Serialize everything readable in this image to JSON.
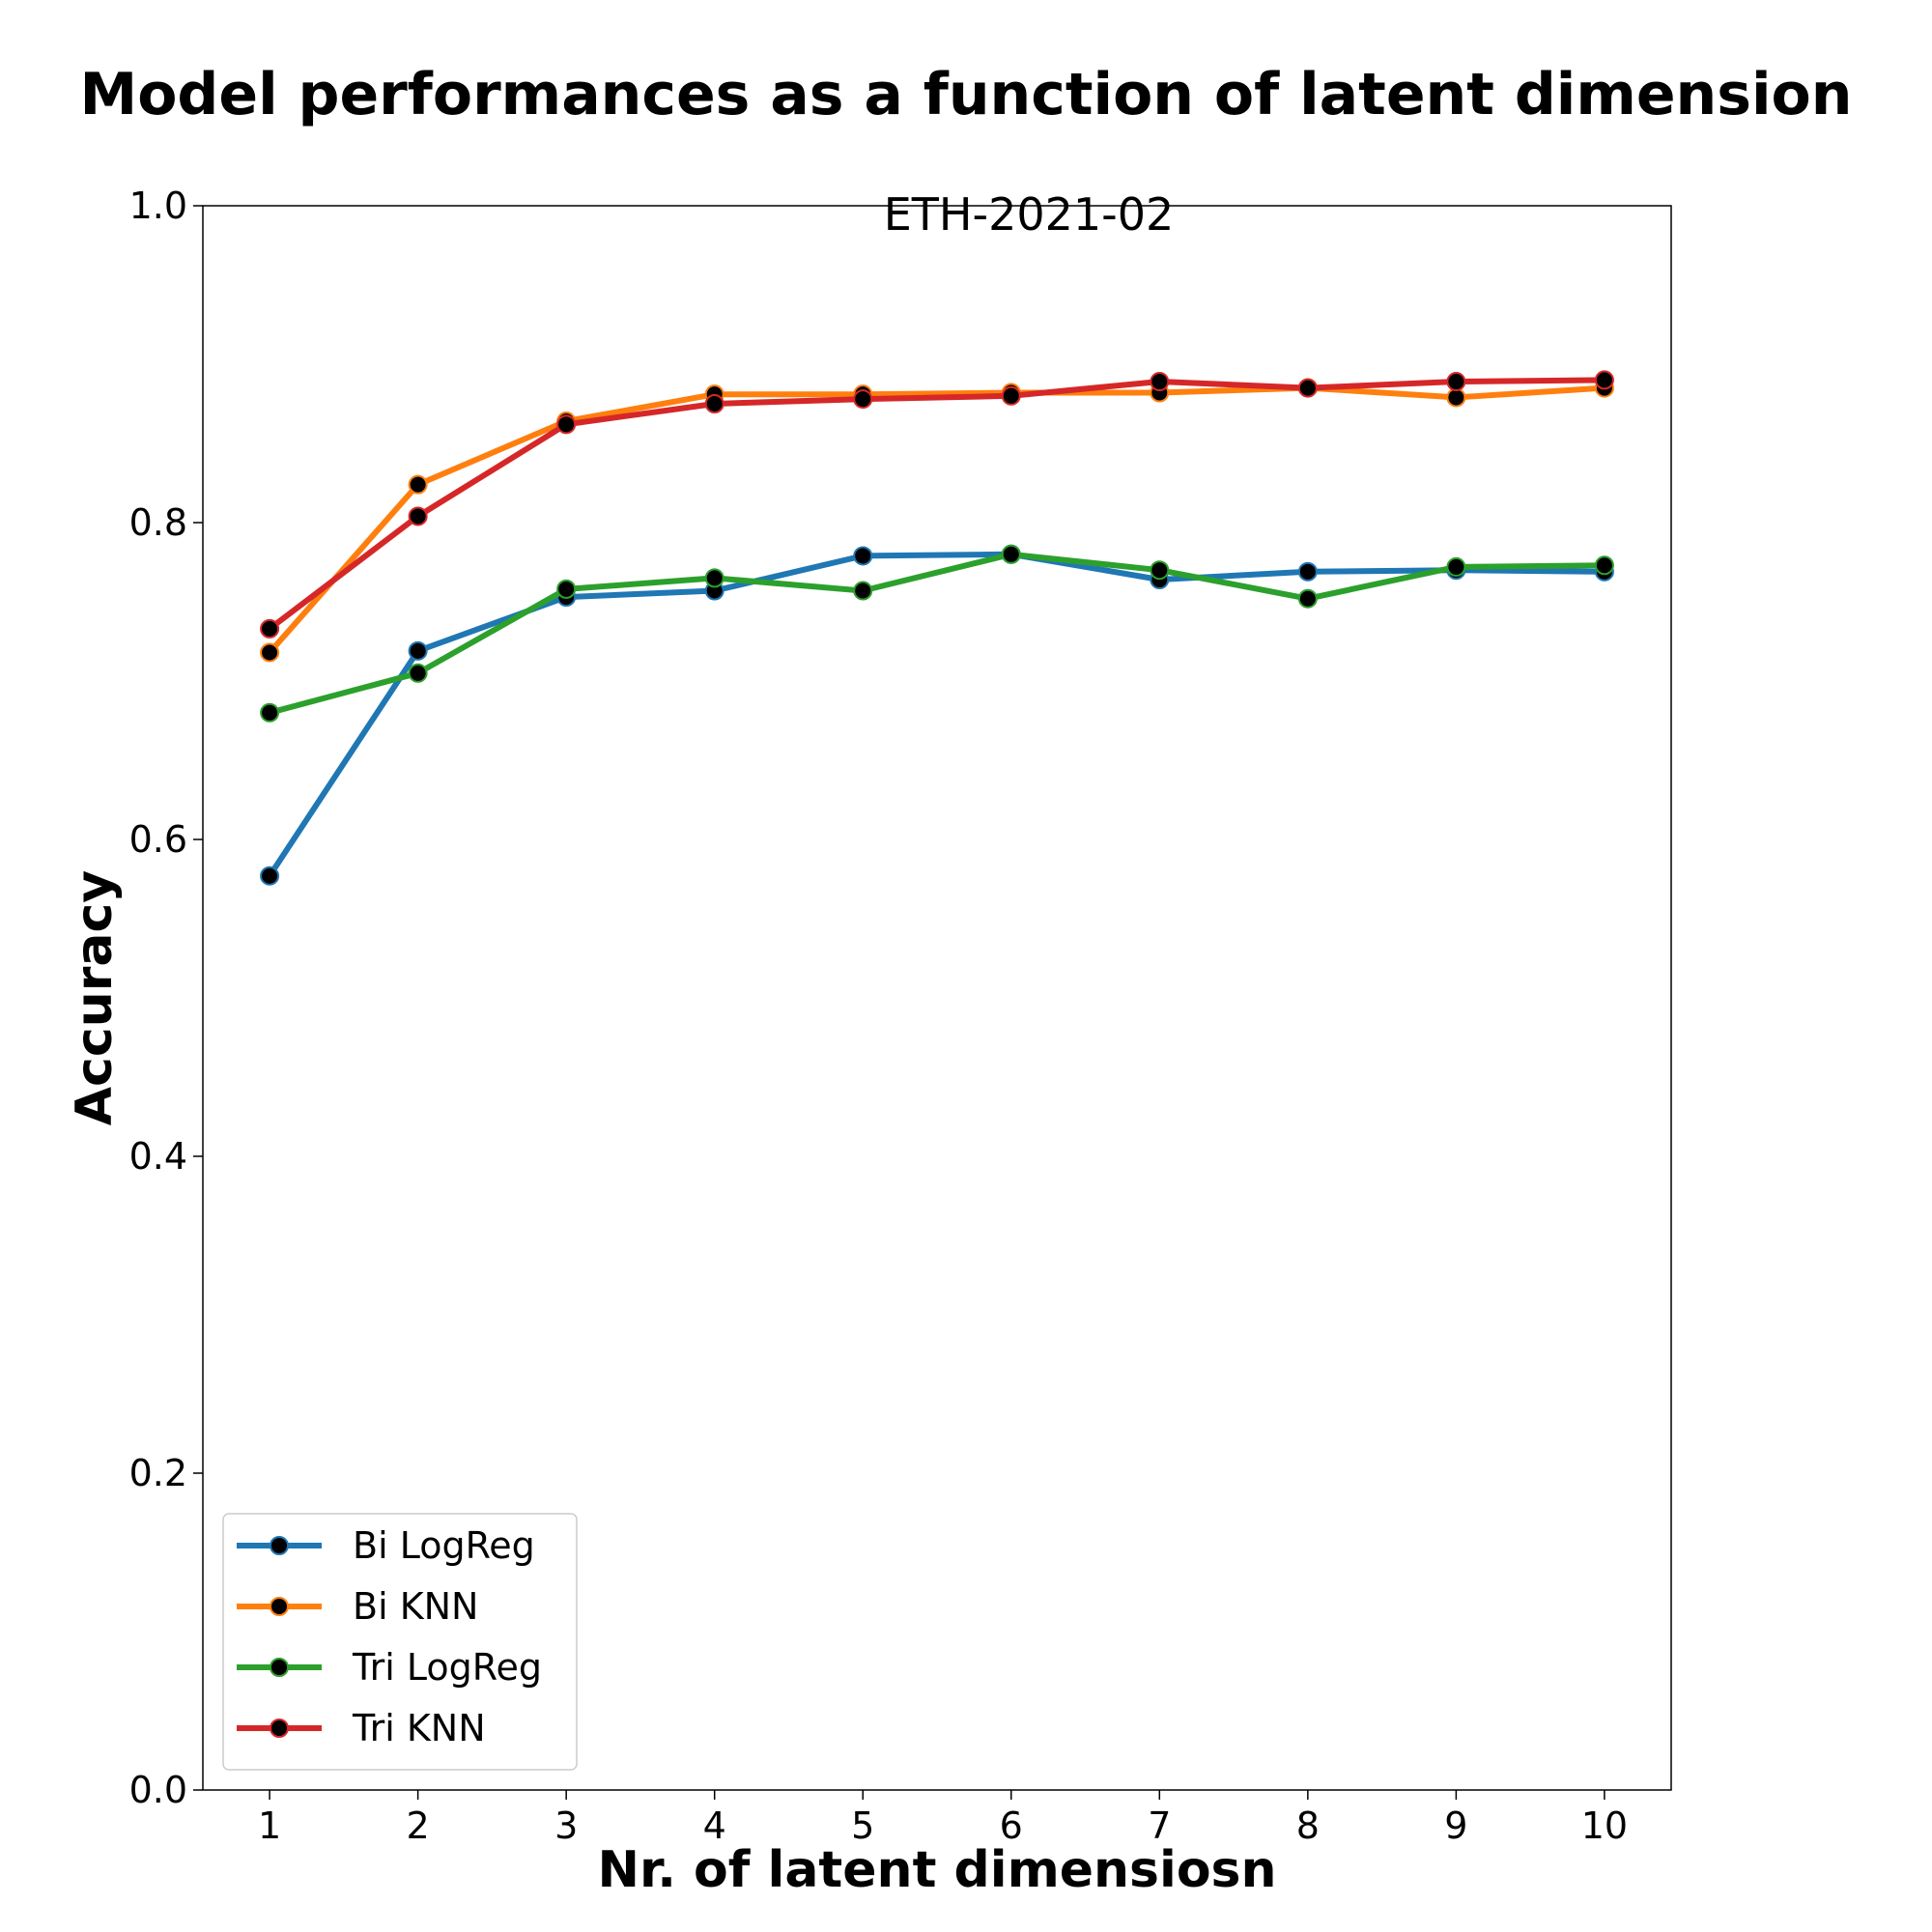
{
  "chart_data": {
    "type": "line",
    "suptitle": "Model performances as a function of latent dimension",
    "title": "ETH-2021-02",
    "xlabel": "Nr. of latent dimensiosn",
    "ylabel": "Accuracy",
    "x": [
      1,
      2,
      3,
      4,
      5,
      6,
      7,
      8,
      9,
      10
    ],
    "x_ticks": [
      "1",
      "2",
      "3",
      "4",
      "5",
      "6",
      "7",
      "8",
      "9",
      "10"
    ],
    "y_ticks": [
      "0.0",
      "0.2",
      "0.4",
      "0.6",
      "0.8",
      "1.0"
    ],
    "xlim": [
      0.55,
      10.45
    ],
    "ylim": [
      0.0,
      1.0
    ],
    "grid": false,
    "legend_position": "lower-left",
    "marker_color": "#000000",
    "series": [
      {
        "name": "Bi LogReg",
        "color": "#1f77b4",
        "values": [
          0.577,
          0.719,
          0.753,
          0.757,
          0.779,
          0.78,
          0.764,
          0.769,
          0.77,
          0.769
        ]
      },
      {
        "name": "Bi KNN",
        "color": "#ff7f0e",
        "values": [
          0.718,
          0.824,
          0.864,
          0.881,
          0.881,
          0.882,
          0.882,
          0.885,
          0.879,
          0.885
        ]
      },
      {
        "name": "Tri LogReg",
        "color": "#2ca02c",
        "values": [
          0.68,
          0.705,
          0.758,
          0.765,
          0.757,
          0.78,
          0.77,
          0.752,
          0.772,
          0.773
        ]
      },
      {
        "name": "Tri KNN",
        "color": "#d62728",
        "values": [
          0.733,
          0.804,
          0.862,
          0.875,
          0.878,
          0.88,
          0.889,
          0.885,
          0.889,
          0.89
        ]
      }
    ]
  }
}
